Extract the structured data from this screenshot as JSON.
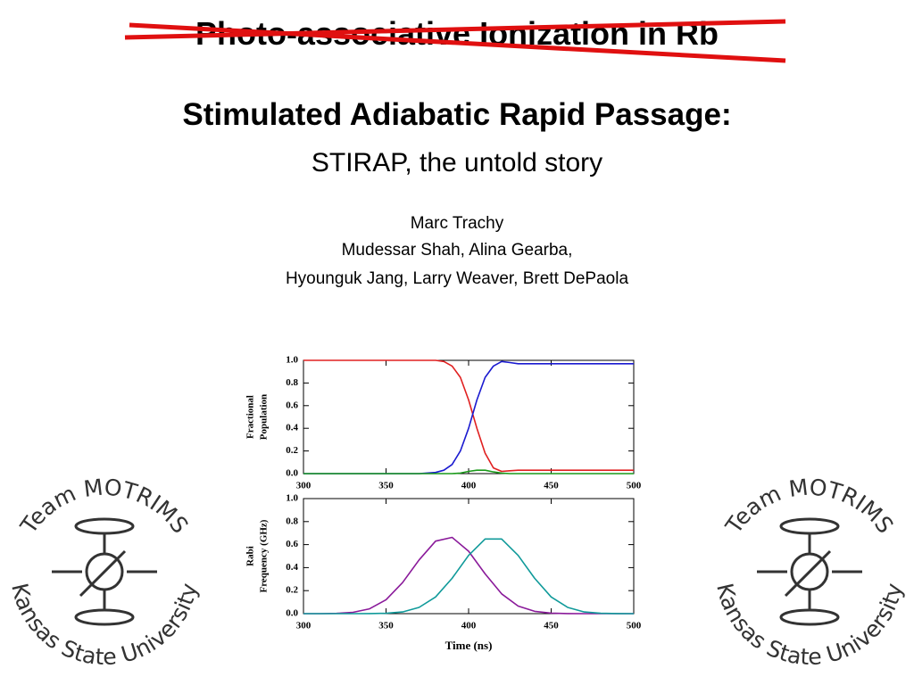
{
  "slide": {
    "title": "Photo-associative Ionization in Rb",
    "heading": "Stimulated Adiabatic Rapid Passage:",
    "subheading": "STIRAP, the untold story",
    "authors": [
      "Marc Trachy",
      "Mudessar Shah, Alina Gearba,",
      "Hyounguk Jang, Larry Weaver, Brett DePaola"
    ],
    "logo_top": "Team MOTRIMS",
    "logo_bottom": "Kansas State University"
  },
  "chart_data": [
    {
      "type": "line",
      "ylabel": [
        "Fractional",
        "Population"
      ],
      "x": [
        300,
        320,
        340,
        360,
        370,
        380,
        385,
        390,
        395,
        400,
        405,
        410,
        415,
        420,
        425,
        430,
        440,
        460,
        480,
        500
      ],
      "series": [
        {
          "color": "#e02020",
          "values": [
            1.0,
            1.0,
            1.0,
            1.0,
            1.0,
            1.0,
            0.99,
            0.95,
            0.85,
            0.65,
            0.4,
            0.18,
            0.05,
            0.02,
            0.025,
            0.03,
            0.03,
            0.03,
            0.03,
            0.03
          ]
        },
        {
          "color": "#1a1ad0",
          "values": [
            0,
            0,
            0,
            0,
            0,
            0.01,
            0.03,
            0.08,
            0.2,
            0.4,
            0.65,
            0.85,
            0.95,
            0.99,
            0.98,
            0.97,
            0.97,
            0.97,
            0.97,
            0.97
          ]
        },
        {
          "color": "#1a9a1a",
          "values": [
            0,
            0,
            0,
            0,
            0,
            0,
            0,
            0,
            0.005,
            0.02,
            0.03,
            0.03,
            0.015,
            0.005,
            0,
            0,
            0,
            0,
            0,
            0
          ]
        }
      ],
      "xlim": [
        300,
        500
      ],
      "xticks": [
        300,
        350,
        400,
        450,
        500
      ],
      "ylim": [
        0,
        1
      ],
      "yticks": [
        {
          "value": 0,
          "label": "0.0"
        },
        0.2,
        0.4,
        0.6,
        0.8,
        {
          "value": 1,
          "label": "1.0"
        }
      ]
    },
    {
      "type": "line",
      "ylabel": [
        "Rabi",
        "Frequency (GHz)"
      ],
      "xlabel": "Time (ns)",
      "x": [
        300,
        310,
        320,
        330,
        340,
        350,
        360,
        370,
        380,
        390,
        400,
        410,
        420,
        430,
        440,
        450,
        460,
        470,
        480,
        490,
        500
      ],
      "series": [
        {
          "color": "#8a1a9a",
          "values": [
            0,
            0,
            0.002,
            0.012,
            0.042,
            0.121,
            0.27,
            0.467,
            0.63,
            0.663,
            0.543,
            0.346,
            0.172,
            0.066,
            0.02,
            0.005,
            0.001,
            0,
            0,
            0,
            0
          ]
        },
        {
          "color": "#109a9a",
          "values": [
            0,
            0,
            0,
            0,
            0.001,
            0.003,
            0.015,
            0.054,
            0.145,
            0.307,
            0.506,
            0.649,
            0.649,
            0.506,
            0.307,
            0.145,
            0.054,
            0.015,
            0.003,
            0.001,
            0
          ]
        }
      ],
      "xlim": [
        300,
        500
      ],
      "xticks": [
        300,
        350,
        400,
        450,
        500
      ],
      "ylim": [
        0,
        1
      ],
      "yticks": [
        {
          "value": 0,
          "label": "0.0"
        },
        0.2,
        0.4,
        0.6,
        0.8,
        {
          "value": 1,
          "label": "1.0"
        }
      ]
    }
  ]
}
